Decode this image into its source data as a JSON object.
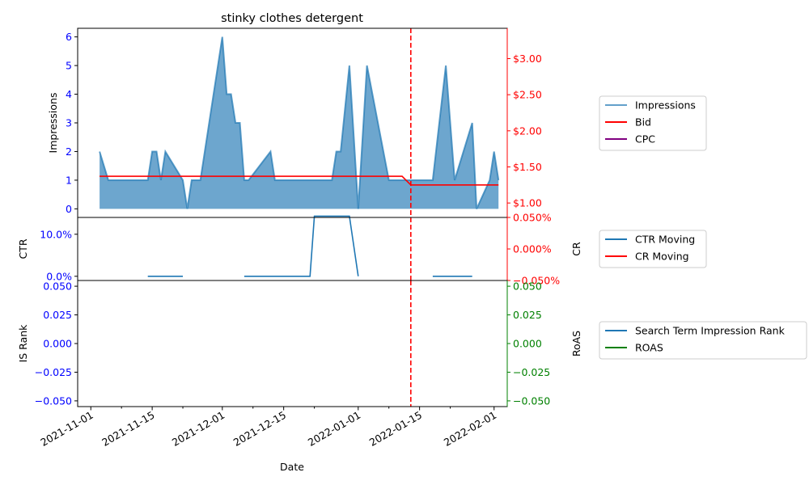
{
  "chart_data": {
    "type": "line",
    "title": "stinky clothes detergent",
    "xlabel": "Date",
    "x_ticks": [
      "2021-11-01",
      "2021-11-15",
      "2021-12-01",
      "2021-12-15",
      "2022-01-01",
      "2022-01-15",
      "2022-02-01"
    ],
    "marker_date": "2022-01-13",
    "panels": [
      {
        "id": "impressions",
        "left_axis": {
          "label": "Impressions",
          "ylim": [
            -0.3,
            6.3
          ],
          "ticks": [
            0,
            1,
            2,
            3,
            4,
            5,
            6
          ],
          "tick_labels": [
            "0",
            "1",
            "2",
            "3",
            "4",
            "5",
            "6"
          ],
          "color": "#0000ff"
        },
        "right_axis": {
          "label": "",
          "ylim": [
            0.8,
            3.42
          ],
          "ticks": [
            1.0,
            1.5,
            2.0,
            2.5,
            3.0
          ],
          "tick_labels": [
            "$1.00",
            "$1.50",
            "$2.00",
            "$2.50",
            "$3.00"
          ],
          "color": "#ff0000"
        },
        "series": [
          {
            "name": "Impressions",
            "kind": "area",
            "axis": "left",
            "color": "#1f77b4",
            "points": [
              [
                "2021-11-03",
                2
              ],
              [
                "2021-11-05",
                1
              ],
              [
                "2021-11-14",
                1
              ],
              [
                "2021-11-15",
                2
              ],
              [
                "2021-11-16",
                2
              ],
              [
                "2021-11-17",
                1
              ],
              [
                "2021-11-18",
                2
              ],
              [
                "2021-11-22",
                1
              ],
              [
                "2021-11-23",
                0
              ],
              [
                "2021-11-24",
                1
              ],
              [
                "2021-11-26",
                1
              ],
              [
                "2021-12-01",
                6
              ],
              [
                "2021-12-02",
                4
              ],
              [
                "2021-12-03",
                4
              ],
              [
                "2021-12-04",
                3
              ],
              [
                "2021-12-05",
                3
              ],
              [
                "2021-12-06",
                1
              ],
              [
                "2021-12-07",
                1
              ],
              [
                "2021-12-12",
                2
              ],
              [
                "2021-12-13",
                1
              ],
              [
                "2021-12-26",
                1
              ],
              [
                "2021-12-27",
                2
              ],
              [
                "2021-12-28",
                2
              ],
              [
                "2021-12-30",
                5
              ],
              [
                "2022-01-01",
                0
              ],
              [
                "2022-01-03",
                5
              ],
              [
                "2022-01-08",
                1
              ],
              [
                "2022-01-12",
                1
              ],
              [
                "2022-01-13",
                1
              ],
              [
                "2022-01-18",
                1
              ],
              [
                "2022-01-21",
                5
              ],
              [
                "2022-01-23",
                1
              ],
              [
                "2022-01-27",
                3
              ],
              [
                "2022-01-28",
                0
              ],
              [
                "2022-01-31",
                1
              ],
              [
                "2022-02-01",
                2
              ],
              [
                "2022-02-02",
                1
              ]
            ]
          },
          {
            "name": "Bid",
            "kind": "line",
            "axis": "right",
            "color": "#ff0000",
            "points": [
              [
                "2021-11-03",
                1.37
              ],
              [
                "2022-01-11",
                1.37
              ],
              [
                "2022-01-13",
                1.25
              ],
              [
                "2022-02-02",
                1.25
              ]
            ]
          },
          {
            "name": "CPC",
            "kind": "line",
            "axis": "right",
            "color": "#800080",
            "points": []
          }
        ]
      },
      {
        "id": "ctr",
        "left_axis": {
          "label": "CTR",
          "ylim": [
            -0.01,
            0.14
          ],
          "ticks": [
            0.0,
            0.1
          ],
          "tick_labels": [
            "0.0%",
            "10.0%"
          ],
          "color": "#0000ff"
        },
        "right_axis": {
          "label": "CR",
          "ylim": [
            -0.05,
            0.05
          ],
          "ticks": [
            -0.05,
            0.0,
            0.05
          ],
          "tick_labels": [
            "−0.050%",
            "0.000%",
            "0.050%"
          ],
          "color": "#ff0000"
        },
        "series": [
          {
            "name": "CTR Moving",
            "kind": "line",
            "axis": "left",
            "color": "#1f77b4",
            "segments": [
              [
                [
                  "2021-11-14",
                  0
                ],
                [
                  "2021-11-22",
                  0
                ]
              ],
              [
                [
                  "2021-12-06",
                  0
                ],
                [
                  "2021-12-21",
                  0
                ],
                [
                  "2021-12-22",
                  0.143
                ],
                [
                  "2021-12-30",
                  0.143
                ],
                [
                  "2022-01-01",
                  0
                ]
              ],
              [
                [
                  "2022-01-18",
                  0
                ],
                [
                  "2022-01-27",
                  0
                ]
              ]
            ]
          },
          {
            "name": "CR Moving",
            "kind": "line",
            "axis": "right",
            "color": "#ff0000",
            "segments": []
          }
        ]
      },
      {
        "id": "is_rank",
        "left_axis": {
          "label": "IS Rank",
          "ylim": [
            -0.055,
            0.055
          ],
          "ticks": [
            -0.05,
            -0.025,
            0.0,
            0.025,
            0.05
          ],
          "tick_labels": [
            "−0.050",
            "−0.025",
            "0.000",
            "0.025",
            "0.050"
          ],
          "color": "#0000ff"
        },
        "right_axis": {
          "label": "RoAS",
          "ylim": [
            -0.055,
            0.055
          ],
          "ticks": [
            -0.05,
            -0.025,
            0.0,
            0.025,
            0.05
          ],
          "tick_labels": [
            "−0.050",
            "−0.025",
            "0.000",
            "0.025",
            "0.050"
          ],
          "color": "#008000"
        },
        "series": [
          {
            "name": "Search Term Impression Rank",
            "kind": "line",
            "axis": "left",
            "color": "#1f77b4",
            "points": []
          },
          {
            "name": "ROAS",
            "kind": "line",
            "axis": "right",
            "color": "#008000",
            "points": []
          }
        ]
      }
    ]
  }
}
